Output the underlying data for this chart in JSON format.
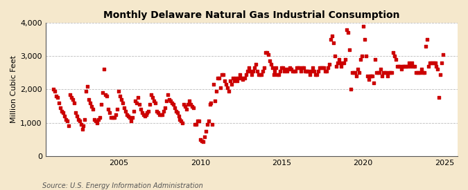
{
  "title": "Monthly Delaware Natural Gas Industrial Consumption",
  "ylabel": "Million Cubic Feet",
  "source": "Source: U.S. Energy Information Administration",
  "xlim": [
    2000.5,
    2025.8
  ],
  "ylim": [
    0,
    4000
  ],
  "yticks": [
    0,
    1000,
    2000,
    3000,
    4000
  ],
  "xticks": [
    2005,
    2010,
    2015,
    2020,
    2025
  ],
  "background_color": "#f5e8cc",
  "plot_bg_color": "#ffffff",
  "dot_color": "#cc0000",
  "dot_size": 6,
  "grid_color": "#aaaaaa",
  "title_fontsize": 10,
  "axis_fontsize": 8,
  "source_fontsize": 7,
  "data": [
    [
      2001.0,
      2000
    ],
    [
      2001.083,
      1950
    ],
    [
      2001.167,
      1800
    ],
    [
      2001.25,
      1750
    ],
    [
      2001.333,
      1600
    ],
    [
      2001.417,
      1450
    ],
    [
      2001.5,
      1350
    ],
    [
      2001.583,
      1300
    ],
    [
      2001.667,
      1200
    ],
    [
      2001.75,
      1100
    ],
    [
      2001.833,
      1050
    ],
    [
      2001.917,
      900
    ],
    [
      2002.0,
      1850
    ],
    [
      2002.083,
      1750
    ],
    [
      2002.167,
      1700
    ],
    [
      2002.25,
      1600
    ],
    [
      2002.333,
      1300
    ],
    [
      2002.417,
      1200
    ],
    [
      2002.5,
      1100
    ],
    [
      2002.583,
      1050
    ],
    [
      2002.667,
      950
    ],
    [
      2002.75,
      800
    ],
    [
      2002.833,
      900
    ],
    [
      2002.917,
      1100
    ],
    [
      2003.0,
      1950
    ],
    [
      2003.083,
      2100
    ],
    [
      2003.167,
      1700
    ],
    [
      2003.25,
      1600
    ],
    [
      2003.333,
      1500
    ],
    [
      2003.417,
      1400
    ],
    [
      2003.5,
      1100
    ],
    [
      2003.583,
      1050
    ],
    [
      2003.667,
      1000
    ],
    [
      2003.75,
      1100
    ],
    [
      2003.833,
      1150
    ],
    [
      2003.917,
      1550
    ],
    [
      2004.0,
      1900
    ],
    [
      2004.083,
      2600
    ],
    [
      2004.167,
      1850
    ],
    [
      2004.25,
      1800
    ],
    [
      2004.333,
      1400
    ],
    [
      2004.417,
      1300
    ],
    [
      2004.5,
      1150
    ],
    [
      2004.583,
      1150
    ],
    [
      2004.667,
      1150
    ],
    [
      2004.75,
      1150
    ],
    [
      2004.833,
      1250
    ],
    [
      2004.917,
      1400
    ],
    [
      2005.0,
      1950
    ],
    [
      2005.083,
      1800
    ],
    [
      2005.167,
      1700
    ],
    [
      2005.25,
      1600
    ],
    [
      2005.333,
      1450
    ],
    [
      2005.417,
      1350
    ],
    [
      2005.5,
      1250
    ],
    [
      2005.583,
      1200
    ],
    [
      2005.667,
      1150
    ],
    [
      2005.75,
      1050
    ],
    [
      2005.833,
      1150
    ],
    [
      2005.917,
      1350
    ],
    [
      2006.0,
      1650
    ],
    [
      2006.083,
      1600
    ],
    [
      2006.167,
      1750
    ],
    [
      2006.25,
      1550
    ],
    [
      2006.333,
      1400
    ],
    [
      2006.417,
      1300
    ],
    [
      2006.5,
      1250
    ],
    [
      2006.583,
      1200
    ],
    [
      2006.667,
      1250
    ],
    [
      2006.75,
      1300
    ],
    [
      2006.833,
      1350
    ],
    [
      2006.917,
      1550
    ],
    [
      2007.0,
      1850
    ],
    [
      2007.083,
      1750
    ],
    [
      2007.167,
      1650
    ],
    [
      2007.25,
      1600
    ],
    [
      2007.333,
      1350
    ],
    [
      2007.417,
      1300
    ],
    [
      2007.5,
      1250
    ],
    [
      2007.583,
      1250
    ],
    [
      2007.667,
      1250
    ],
    [
      2007.75,
      1350
    ],
    [
      2007.833,
      1450
    ],
    [
      2007.917,
      1650
    ],
    [
      2008.0,
      1850
    ],
    [
      2008.083,
      1700
    ],
    [
      2008.167,
      1650
    ],
    [
      2008.25,
      1600
    ],
    [
      2008.333,
      1550
    ],
    [
      2008.417,
      1450
    ],
    [
      2008.5,
      1350
    ],
    [
      2008.583,
      1300
    ],
    [
      2008.667,
      1200
    ],
    [
      2008.75,
      1100
    ],
    [
      2008.833,
      1050
    ],
    [
      2008.917,
      1000
    ],
    [
      2009.0,
      1550
    ],
    [
      2009.083,
      1500
    ],
    [
      2009.167,
      1400
    ],
    [
      2009.25,
      1550
    ],
    [
      2009.333,
      1650
    ],
    [
      2009.417,
      1550
    ],
    [
      2009.5,
      1500
    ],
    [
      2009.583,
      1450
    ],
    [
      2009.667,
      950
    ],
    [
      2009.75,
      950
    ],
    [
      2009.833,
      1050
    ],
    [
      2009.917,
      1050
    ],
    [
      2010.0,
      500
    ],
    [
      2010.083,
      450
    ],
    [
      2010.167,
      430
    ],
    [
      2010.25,
      580
    ],
    [
      2010.333,
      750
    ],
    [
      2010.417,
      950
    ],
    [
      2010.5,
      1050
    ],
    [
      2010.583,
      1550
    ],
    [
      2010.667,
      1600
    ],
    [
      2010.75,
      950
    ],
    [
      2010.833,
      2150
    ],
    [
      2010.917,
      1650
    ],
    [
      2011.0,
      1950
    ],
    [
      2011.083,
      2350
    ],
    [
      2011.167,
      2350
    ],
    [
      2011.25,
      2050
    ],
    [
      2011.333,
      2450
    ],
    [
      2011.417,
      2450
    ],
    [
      2011.5,
      2250
    ],
    [
      2011.583,
      2150
    ],
    [
      2011.667,
      2050
    ],
    [
      2011.75,
      1950
    ],
    [
      2011.833,
      2250
    ],
    [
      2011.917,
      2150
    ],
    [
      2012.0,
      2350
    ],
    [
      2012.083,
      2250
    ],
    [
      2012.167,
      2350
    ],
    [
      2012.25,
      2250
    ],
    [
      2012.333,
      2350
    ],
    [
      2012.417,
      2450
    ],
    [
      2012.5,
      2350
    ],
    [
      2012.583,
      2300
    ],
    [
      2012.667,
      2350
    ],
    [
      2012.75,
      2350
    ],
    [
      2012.833,
      2450
    ],
    [
      2012.917,
      2550
    ],
    [
      2013.0,
      2650
    ],
    [
      2013.083,
      2550
    ],
    [
      2013.167,
      2450
    ],
    [
      2013.25,
      2550
    ],
    [
      2013.333,
      2650
    ],
    [
      2013.417,
      2750
    ],
    [
      2013.5,
      2550
    ],
    [
      2013.583,
      2450
    ],
    [
      2013.667,
      2450
    ],
    [
      2013.75,
      2450
    ],
    [
      2013.833,
      2550
    ],
    [
      2013.917,
      2650
    ],
    [
      2014.0,
      3100
    ],
    [
      2014.083,
      3100
    ],
    [
      2014.167,
      3050
    ],
    [
      2014.25,
      2850
    ],
    [
      2014.333,
      2750
    ],
    [
      2014.417,
      2650
    ],
    [
      2014.5,
      2450
    ],
    [
      2014.583,
      2550
    ],
    [
      2014.667,
      2650
    ],
    [
      2014.75,
      2450
    ],
    [
      2014.833,
      2450
    ],
    [
      2014.917,
      2550
    ],
    [
      2015.0,
      2650
    ],
    [
      2015.083,
      2650
    ],
    [
      2015.167,
      2550
    ],
    [
      2015.25,
      2600
    ],
    [
      2015.333,
      2550
    ],
    [
      2015.417,
      2600
    ],
    [
      2015.5,
      2650
    ],
    [
      2015.583,
      2600
    ],
    [
      2015.667,
      2550
    ],
    [
      2015.75,
      2550
    ],
    [
      2015.833,
      2550
    ],
    [
      2015.917,
      2650
    ],
    [
      2016.0,
      2650
    ],
    [
      2016.083,
      2650
    ],
    [
      2016.167,
      2550
    ],
    [
      2016.25,
      2650
    ],
    [
      2016.333,
      2650
    ],
    [
      2016.417,
      2550
    ],
    [
      2016.5,
      2550
    ],
    [
      2016.583,
      2550
    ],
    [
      2016.667,
      2550
    ],
    [
      2016.75,
      2450
    ],
    [
      2016.833,
      2550
    ],
    [
      2016.917,
      2650
    ],
    [
      2017.0,
      2550
    ],
    [
      2017.083,
      2450
    ],
    [
      2017.167,
      2450
    ],
    [
      2017.25,
      2550
    ],
    [
      2017.333,
      2650
    ],
    [
      2017.417,
      2650
    ],
    [
      2017.5,
      2650
    ],
    [
      2017.583,
      2650
    ],
    [
      2017.667,
      2550
    ],
    [
      2017.75,
      2550
    ],
    [
      2017.833,
      2650
    ],
    [
      2017.917,
      2750
    ],
    [
      2018.0,
      3500
    ],
    [
      2018.083,
      3600
    ],
    [
      2018.167,
      3400
    ],
    [
      2018.25,
      3000
    ],
    [
      2018.333,
      2700
    ],
    [
      2018.417,
      2800
    ],
    [
      2018.5,
      2900
    ],
    [
      2018.583,
      2800
    ],
    [
      2018.667,
      2700
    ],
    [
      2018.75,
      2800
    ],
    [
      2018.833,
      2800
    ],
    [
      2018.917,
      2900
    ],
    [
      2019.0,
      3800
    ],
    [
      2019.083,
      3700
    ],
    [
      2019.167,
      3200
    ],
    [
      2019.25,
      2000
    ],
    [
      2019.333,
      2500
    ],
    [
      2019.417,
      2500
    ],
    [
      2019.5,
      2500
    ],
    [
      2019.583,
      2400
    ],
    [
      2019.667,
      2600
    ],
    [
      2019.75,
      2500
    ],
    [
      2019.833,
      2900
    ],
    [
      2019.917,
      3000
    ],
    [
      2020.0,
      3900
    ],
    [
      2020.083,
      3500
    ],
    [
      2020.167,
      3000
    ],
    [
      2020.25,
      2400
    ],
    [
      2020.333,
      2300
    ],
    [
      2020.417,
      2400
    ],
    [
      2020.5,
      2400
    ],
    [
      2020.583,
      2400
    ],
    [
      2020.667,
      2200
    ],
    [
      2020.75,
      2900
    ],
    [
      2020.833,
      2500
    ],
    [
      2020.917,
      2500
    ],
    [
      2021.0,
      2500
    ],
    [
      2021.083,
      2600
    ],
    [
      2021.167,
      2400
    ],
    [
      2021.25,
      2500
    ],
    [
      2021.333,
      2500
    ],
    [
      2021.417,
      2500
    ],
    [
      2021.5,
      2400
    ],
    [
      2021.583,
      2500
    ],
    [
      2021.667,
      2500
    ],
    [
      2021.75,
      2500
    ],
    [
      2021.833,
      3100
    ],
    [
      2021.917,
      3000
    ],
    [
      2022.0,
      2900
    ],
    [
      2022.083,
      2700
    ],
    [
      2022.167,
      2700
    ],
    [
      2022.25,
      2700
    ],
    [
      2022.333,
      2600
    ],
    [
      2022.417,
      2700
    ],
    [
      2022.5,
      2700
    ],
    [
      2022.583,
      2700
    ],
    [
      2022.667,
      2700
    ],
    [
      2022.75,
      2700
    ],
    [
      2022.833,
      2800
    ],
    [
      2022.917,
      2700
    ],
    [
      2023.0,
      2800
    ],
    [
      2023.083,
      2700
    ],
    [
      2023.167,
      2700
    ],
    [
      2023.25,
      2500
    ],
    [
      2023.333,
      2500
    ],
    [
      2023.417,
      2500
    ],
    [
      2023.5,
      2500
    ],
    [
      2023.583,
      2600
    ],
    [
      2023.667,
      2500
    ],
    [
      2023.75,
      2500
    ],
    [
      2023.833,
      3300
    ],
    [
      2023.917,
      3500
    ],
    [
      2024.0,
      2700
    ],
    [
      2024.083,
      2800
    ],
    [
      2024.167,
      2800
    ],
    [
      2024.25,
      2800
    ],
    [
      2024.333,
      2800
    ],
    [
      2024.417,
      2800
    ],
    [
      2024.5,
      2700
    ],
    [
      2024.583,
      2600
    ],
    [
      2024.667,
      1750
    ],
    [
      2024.75,
      2450
    ],
    [
      2024.833,
      2800
    ],
    [
      2024.917,
      3050
    ]
  ]
}
